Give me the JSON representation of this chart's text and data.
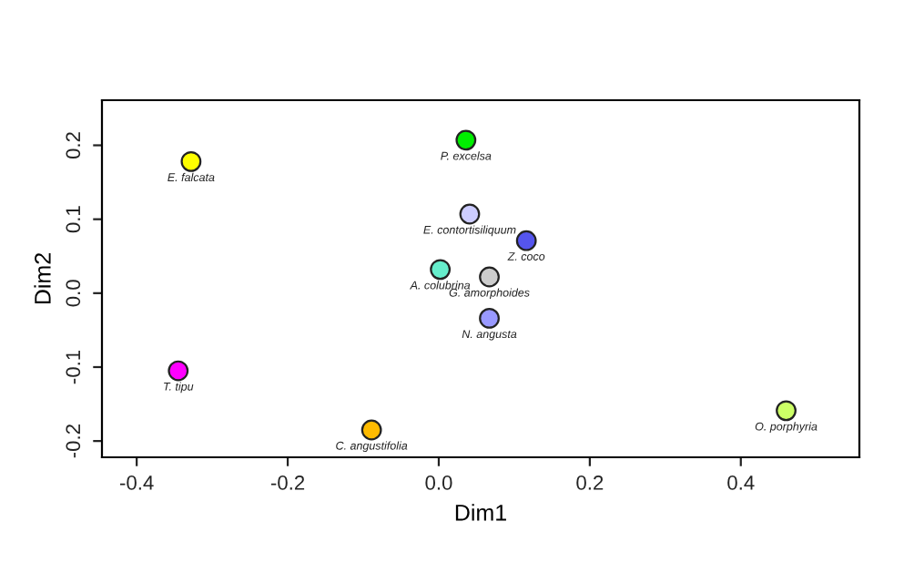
{
  "chart_data": {
    "type": "scatter",
    "xlabel": "Dim1",
    "ylabel": "Dim2",
    "x": [
      -0.328,
      0.036,
      0.041,
      0.116,
      0.002,
      0.067,
      0.067,
      -0.345,
      -0.089,
      0.46
    ],
    "values": [
      0.178,
      0.207,
      0.107,
      0.071,
      0.032,
      0.022,
      -0.034,
      -0.105,
      -0.185,
      -0.159
    ],
    "colors": [
      "#ffff00",
      "#00ee00",
      "#ccccff",
      "#5555ee",
      "#66eecc",
      "#cccccc",
      "#9999ff",
      "#ff00ff",
      "#ffbb00",
      "#ccff66"
    ],
    "marker": "circle",
    "grid": false,
    "legend": false,
    "xlim": [
      -0.446,
      0.557
    ],
    "ylim": [
      -0.222,
      0.261
    ],
    "xticks": [
      {
        "value": -0.4,
        "label": "-0.4"
      },
      {
        "value": -0.2,
        "label": "-0.2"
      },
      {
        "value": 0.0,
        "label": "0.0"
      },
      {
        "value": 0.2,
        "label": "0.2"
      },
      {
        "value": 0.4,
        "label": "0.4"
      }
    ],
    "yticks": [
      {
        "value": -0.2,
        "label": "-0.2"
      },
      {
        "value": -0.1,
        "label": "-0.1"
      },
      {
        "value": 0.0,
        "label": "0.0"
      },
      {
        "value": 0.1,
        "label": "0.1"
      },
      {
        "value": 0.2,
        "label": "0.2"
      }
    ],
    "annotations": [
      {
        "text": "E. falcata",
        "x": -0.328,
        "y": 0.178
      },
      {
        "text": "P. excelsa",
        "x": 0.036,
        "y": 0.207
      },
      {
        "text": "E. contortisiliquum",
        "x": 0.041,
        "y": 0.107
      },
      {
        "text": "Z. coco",
        "x": 0.116,
        "y": 0.071
      },
      {
        "text": "A. colubrina",
        "x": 0.002,
        "y": 0.032
      },
      {
        "text": "G. amorphoides",
        "x": 0.067,
        "y": 0.022
      },
      {
        "text": "N. angusta",
        "x": 0.067,
        "y": -0.034
      },
      {
        "text": "T. tipu",
        "x": -0.345,
        "y": -0.105
      },
      {
        "text": "C. angustifolia",
        "x": -0.089,
        "y": -0.185
      },
      {
        "text": "O. porphyria",
        "x": 0.46,
        "y": -0.159
      }
    ]
  }
}
